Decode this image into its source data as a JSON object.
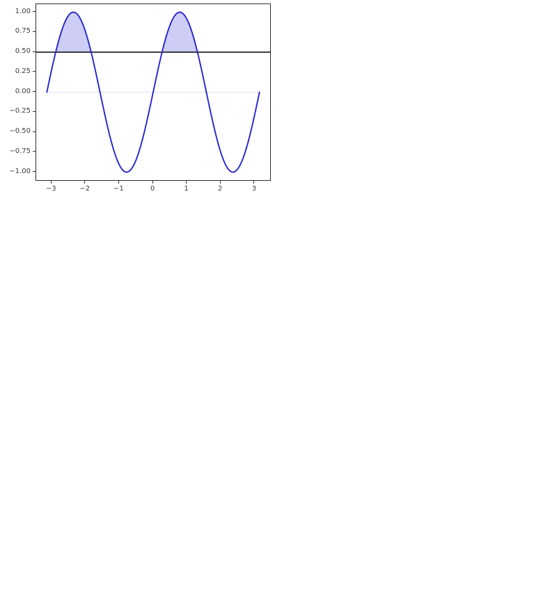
{
  "page": {
    "background": "#ffffff"
  },
  "chart_data": {
    "type": "line",
    "title": "",
    "xlabel": "",
    "ylabel": "",
    "expression": "sin(2*x)",
    "x_range": [
      -3.14159265,
      3.14159265
    ],
    "num_samples": 400,
    "xlim": [
      -3.4558,
      3.4558
    ],
    "ylim": [
      -1.1,
      1.1
    ],
    "grid": false,
    "legend": null,
    "key_points": [
      {
        "x": -3.1416,
        "y": 0.0
      },
      {
        "x": -2.3562,
        "y": 1.0
      },
      {
        "x": -1.5708,
        "y": 0.0
      },
      {
        "x": -0.7854,
        "y": -1.0
      },
      {
        "x": 0.0,
        "y": 0.0
      },
      {
        "x": 0.7854,
        "y": 1.0
      },
      {
        "x": 1.5708,
        "y": 0.0
      },
      {
        "x": 2.3562,
        "y": -1.0
      },
      {
        "x": 3.1416,
        "y": 0.0
      }
    ],
    "xticks": {
      "values": [
        -3,
        -2,
        -1,
        0,
        1,
        2,
        3
      ],
      "labels": [
        "−3",
        "−2",
        "−1",
        "0",
        "1",
        "2",
        "3"
      ]
    },
    "yticks": {
      "values": [
        1.0,
        0.75,
        0.5,
        0.25,
        0.0,
        -0.25,
        -0.5,
        -0.75,
        -1.0
      ],
      "labels": [
        "1.00",
        "0.75",
        "0.50",
        "0.25",
        "0.00",
        "−0.25",
        "−0.50",
        "−0.75",
        "−1.00"
      ]
    },
    "threshold_line": {
      "y": 0.5,
      "color": "#000000",
      "extent": "full-axes-width"
    },
    "zero_line": {
      "y": 0.0,
      "color": "#dcdcf4",
      "extent": "data-range"
    },
    "fill": {
      "condition": "y > 0.5",
      "between": "curve and y = 0.5",
      "color": "#cdcdf6",
      "regions_x": [
        [
          -2.8798,
          -1.8326
        ],
        [
          0.2618,
          1.309
        ]
      ]
    },
    "line_color": "#2525cd",
    "style": {
      "spine_color": "#2e2e2e",
      "tick_color": "#2e2e2e",
      "tick_label_color": "#3a3a3a",
      "axes_background": "#ffffff"
    }
  }
}
